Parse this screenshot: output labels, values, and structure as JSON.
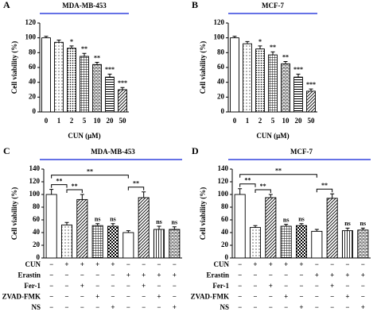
{
  "chart_data": [
    {
      "type": "bar",
      "panel": "A",
      "title": "MDA-MB-453",
      "title_line_color": "#3344dd",
      "xlabel": "CUN (μM)",
      "ylabel": "Cell viability (%)",
      "categories": [
        "0",
        "1",
        "2",
        "5",
        "10",
        "20",
        "50"
      ],
      "values": [
        100,
        94,
        86,
        75,
        64,
        47,
        30
      ],
      "errors": [
        2,
        3,
        3,
        4,
        3,
        4,
        3
      ],
      "annotations": [
        null,
        null,
        "*",
        "**",
        "**",
        "***",
        "***"
      ],
      "patterns": [
        "white",
        "dots",
        "dense-dots",
        "grid",
        "bricks",
        "hlines",
        "diag"
      ],
      "color": "#000000",
      "ylim": [
        0,
        120
      ],
      "yticks": [
        0,
        20,
        40,
        60,
        80,
        100,
        120
      ]
    },
    {
      "type": "bar",
      "panel": "B",
      "title": "MCF-7",
      "title_line_color": "#3344dd",
      "xlabel": "CUN (μM)",
      "ylabel": "Cell viability (%)",
      "categories": [
        "0",
        "1",
        "2",
        "5",
        "10",
        "20",
        "50"
      ],
      "values": [
        100,
        92,
        85,
        77,
        65,
        47,
        28
      ],
      "errors": [
        2,
        3,
        4,
        4,
        3,
        4,
        3
      ],
      "annotations": [
        null,
        null,
        "*",
        "**",
        "**",
        "***",
        "***"
      ],
      "patterns": [
        "white",
        "dots",
        "dense-dots",
        "grid",
        "bricks",
        "hlines",
        "diag"
      ],
      "color": "#000000",
      "ylim": [
        0,
        120
      ],
      "yticks": [
        0,
        20,
        40,
        60,
        80,
        100,
        120
      ]
    },
    {
      "type": "bar",
      "panel": "C",
      "title": "MDA-MB-453",
      "title_line_color": "#3344dd",
      "ylabel": "Cell viability (%)",
      "values": [
        100,
        52,
        92,
        51,
        50,
        40,
        95,
        45,
        45
      ],
      "errors": [
        8,
        4,
        8,
        3,
        4,
        3,
        9,
        5,
        4
      ],
      "annotations": [
        null,
        null,
        null,
        "ns",
        "ns",
        null,
        null,
        "ns",
        "ns"
      ],
      "brackets": [
        {
          "bars": [
            0,
            1
          ],
          "label": "**"
        },
        {
          "bars": [
            1,
            2
          ],
          "label": "**"
        },
        {
          "bars": [
            0,
            5
          ],
          "label": "**"
        },
        {
          "bars": [
            5,
            6
          ],
          "label": "**"
        }
      ],
      "treatments": [
        {
          "name": "CUN",
          "signs": [
            "−",
            "+",
            "+",
            "+",
            "+",
            "−",
            "−",
            "−",
            "−"
          ]
        },
        {
          "name": "Erastin",
          "signs": [
            "−",
            "−",
            "−",
            "−",
            "−",
            "+",
            "+",
            "+",
            "+"
          ]
        },
        {
          "name": "Fer-1",
          "signs": [
            "−",
            "−",
            "+",
            "−",
            "−",
            "−",
            "+",
            "−",
            "−"
          ]
        },
        {
          "name": "ZVAD-FMK",
          "signs": [
            "−",
            "−",
            "−",
            "+",
            "−",
            "−",
            "−",
            "+",
            "−"
          ]
        },
        {
          "name": "NS",
          "signs": [
            "−",
            "−",
            "−",
            "−",
            "+",
            "−",
            "−",
            "−",
            "+"
          ]
        }
      ],
      "patterns": [
        "white",
        "dots",
        "diag",
        "grid",
        "checker",
        "white",
        "diag",
        "vlines",
        "bricks"
      ],
      "color": "#000000",
      "ylim": [
        0,
        140
      ],
      "yticks": [
        0,
        20,
        40,
        60,
        80,
        100,
        120,
        140
      ]
    },
    {
      "type": "bar",
      "panel": "D",
      "title": "MCF-7",
      "title_line_color": "#3344dd",
      "ylabel": "Cell viability (%)",
      "values": [
        100,
        48,
        95,
        50,
        51,
        42,
        94,
        43,
        44
      ],
      "errors": [
        9,
        3,
        5,
        3,
        3,
        3,
        7,
        4,
        3
      ],
      "annotations": [
        null,
        null,
        null,
        "ns",
        "ns",
        null,
        null,
        "ns",
        "ns"
      ],
      "brackets": [
        {
          "bars": [
            0,
            1
          ],
          "label": "**"
        },
        {
          "bars": [
            1,
            2
          ],
          "label": "**"
        },
        {
          "bars": [
            0,
            5
          ],
          "label": "**"
        },
        {
          "bars": [
            5,
            6
          ],
          "label": "**"
        }
      ],
      "treatments": [
        {
          "name": "CUN",
          "signs": [
            "−",
            "+",
            "+",
            "+",
            "+",
            "−",
            "−",
            "−",
            "−"
          ]
        },
        {
          "name": "Erastin",
          "signs": [
            "−",
            "−",
            "−",
            "−",
            "−",
            "+",
            "+",
            "+",
            "+"
          ]
        },
        {
          "name": "Fer-1",
          "signs": [
            "−",
            "−",
            "+",
            "−",
            "−",
            "−",
            "+",
            "−",
            "−"
          ]
        },
        {
          "name": "ZVAD-FMK",
          "signs": [
            "−",
            "−",
            "−",
            "+",
            "−",
            "−",
            "−",
            "+",
            "−"
          ]
        },
        {
          "name": "NS",
          "signs": [
            "−",
            "−",
            "−",
            "−",
            "+",
            "−",
            "−",
            "−",
            "+"
          ]
        }
      ],
      "patterns": [
        "white",
        "dots",
        "diag",
        "grid",
        "checker",
        "white",
        "diag",
        "vlines",
        "bricks"
      ],
      "color": "#000000",
      "ylim": [
        0,
        140
      ],
      "yticks": [
        0,
        20,
        40,
        60,
        80,
        100,
        120,
        140
      ]
    }
  ]
}
